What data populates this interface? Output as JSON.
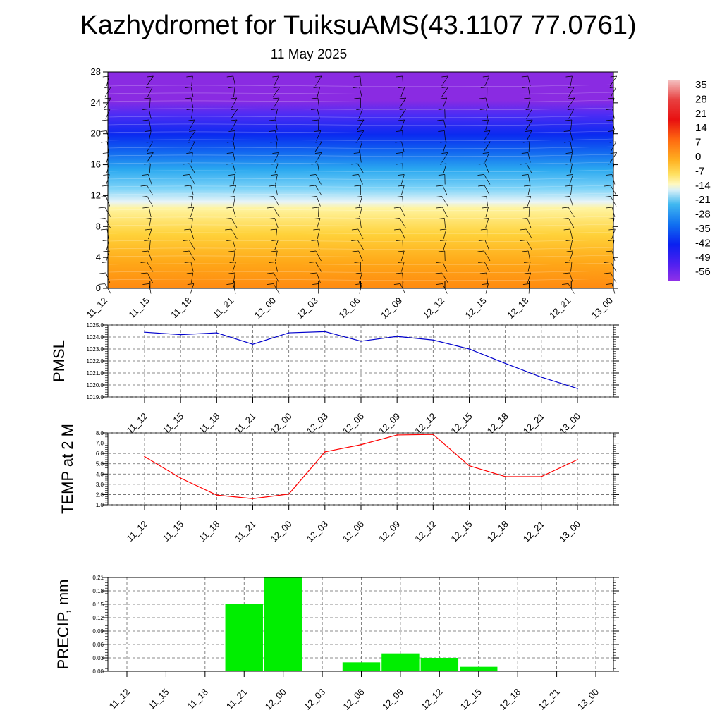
{
  "title": "Kazhydromet for TuiksuAMS(43.1107 77.0761)",
  "subtitle": "11 May 2025",
  "time_labels": [
    "11_12",
    "11_15",
    "11_18",
    "11_21",
    "12_00",
    "12_03",
    "12_06",
    "12_09",
    "12_12",
    "12_15",
    "12_18",
    "12_21",
    "13_00"
  ],
  "colors": {
    "pmsl_line": "#0000cc",
    "temp_line": "#ff0000",
    "precip_bar": "#00ee00"
  },
  "chart_data": [
    {
      "type": "heatmap",
      "panel": "cross-section",
      "y_ticks": [
        0,
        4,
        8,
        12,
        16,
        20,
        24,
        28
      ],
      "ylim": [
        0,
        28
      ],
      "wind_barbs": true,
      "colorbar": {
        "labels": [
          "35",
          "28",
          "21",
          "14",
          "7",
          "0",
          "-7",
          "-14",
          "-21",
          "-28",
          "-35",
          "-42",
          "-49",
          "-56"
        ],
        "range": [
          -63,
          42
        ],
        "placement": "right"
      }
    },
    {
      "type": "line",
      "panel": "pmsl",
      "ylabel": "PMSL",
      "ylim": [
        1019.0,
        1025.0
      ],
      "y_ticks": [
        "1025.0",
        "1024.0",
        "1023.0",
        "1022.0",
        "1021.0",
        "1020.0",
        "1019.0"
      ],
      "x": [
        "11_12",
        "11_15",
        "11_18",
        "11_21",
        "12_00",
        "12_03",
        "12_06",
        "12_09",
        "12_12",
        "12_15",
        "12_18",
        "12_21",
        "13_00"
      ],
      "values": [
        1024.4,
        1024.2,
        1024.35,
        1023.4,
        1024.35,
        1024.45,
        1023.65,
        1024.05,
        1023.75,
        1023.0,
        1021.8,
        1020.65,
        1019.7
      ],
      "grid": true
    },
    {
      "type": "line",
      "panel": "temperature",
      "ylabel": "TEMP at 2 M",
      "ylim": [
        1.0,
        8.0
      ],
      "y_ticks": [
        "8.0",
        "7.0",
        "6.0",
        "5.0",
        "4.0",
        "3.0",
        "2.0",
        "1.0"
      ],
      "x": [
        "11_12",
        "11_15",
        "11_18",
        "11_21",
        "12_00",
        "12_03",
        "12_06",
        "12_09",
        "12_12",
        "12_15",
        "12_18",
        "12_21",
        "13_00"
      ],
      "values": [
        5.7,
        3.6,
        1.95,
        1.6,
        2.05,
        6.15,
        6.85,
        7.8,
        7.85,
        4.8,
        3.75,
        3.75,
        5.4
      ],
      "grid": true
    },
    {
      "type": "bar",
      "panel": "precipitation",
      "ylabel": "PRECIP, mm",
      "ylim": [
        0,
        0.21
      ],
      "y_ticks": [
        "0.21",
        "0.18",
        "0.15",
        "0.12",
        "0.09",
        "0.06",
        "0.03",
        "0.00"
      ],
      "categories": [
        "11_12",
        "11_15",
        "11_18",
        "11_21",
        "12_00",
        "12_03",
        "12_06",
        "12_09",
        "12_12",
        "12_15",
        "12_18",
        "12_21",
        "13_00"
      ],
      "values": [
        0,
        0,
        0,
        0.15,
        0.21,
        0,
        0.02,
        0.04,
        0.03,
        0.01,
        0,
        0,
        0
      ],
      "grid": true
    }
  ]
}
